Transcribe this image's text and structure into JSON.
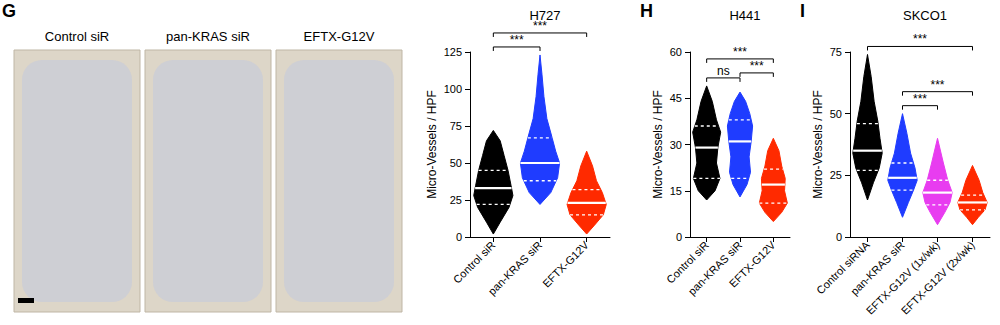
{
  "images": {
    "label": "G",
    "captions": [
      "Control siR",
      "pan-KRAS siR",
      "EFTX-G12V"
    ]
  },
  "chart_data": [
    {
      "type": "violin",
      "title": "H727",
      "y_label": "Micro-Vessels / HPF",
      "ylim": [
        0,
        125
      ],
      "yticks": [
        0,
        25,
        50,
        75,
        100,
        125
      ],
      "categories": [
        "Control siR",
        "pan-KRAS siR",
        "EFTX-G12V"
      ],
      "groups": [
        {
          "name": "Control siR",
          "color": "#000000",
          "q1": 22,
          "median": 33,
          "q3": 45,
          "density": [
            [
              2,
              0
            ],
            [
              10,
              0.35
            ],
            [
              20,
              0.8
            ],
            [
              28,
              1
            ],
            [
              35,
              0.9
            ],
            [
              45,
              0.75
            ],
            [
              55,
              0.55
            ],
            [
              65,
              0.35
            ],
            [
              72,
              0
            ]
          ]
        },
        {
          "name": "pan-KRAS siR",
          "color": "#1f3cff",
          "q1": 38,
          "median": 50,
          "q3": 67,
          "density": [
            [
              22,
              0
            ],
            [
              30,
              0.55
            ],
            [
              40,
              0.9
            ],
            [
              50,
              1
            ],
            [
              58,
              0.8
            ],
            [
              68,
              0.6
            ],
            [
              80,
              0.35
            ],
            [
              95,
              0.2
            ],
            [
              110,
              0.1
            ],
            [
              123,
              0
            ]
          ]
        },
        {
          "name": "EFTX-G12V",
          "color": "#ff2a00",
          "q1": 15,
          "median": 23,
          "q3": 32,
          "density": [
            [
              2,
              0
            ],
            [
              8,
              0.4
            ],
            [
              15,
              0.85
            ],
            [
              22,
              1
            ],
            [
              30,
              0.8
            ],
            [
              38,
              0.5
            ],
            [
              48,
              0.3
            ],
            [
              58,
              0
            ]
          ]
        }
      ],
      "comparisons": [
        {
          "from": 0,
          "to": 1,
          "label": "***"
        },
        {
          "from": 0,
          "to": 2,
          "label": "***"
        }
      ]
    },
    {
      "type": "violin",
      "title": "H441",
      "panel_label": "H",
      "y_label": "Micro-Vessels / HPF",
      "ylim": [
        0,
        60
      ],
      "yticks": [
        0,
        15,
        30,
        45,
        60
      ],
      "categories": [
        "Control siR",
        "pan-KRAS siR",
        "EFTX-G12V"
      ],
      "groups": [
        {
          "name": "Control siR",
          "color": "#000000",
          "q1": 19,
          "median": 29,
          "q3": 36,
          "density": [
            [
              12,
              0
            ],
            [
              15,
              0.6
            ],
            [
              19,
              0.95
            ],
            [
              24,
              0.7
            ],
            [
              29,
              0.8
            ],
            [
              34,
              1
            ],
            [
              38,
              0.7
            ],
            [
              44,
              0.4
            ],
            [
              49,
              0
            ]
          ]
        },
        {
          "name": "pan-KRAS siR",
          "color": "#1f3cff",
          "q1": 19,
          "median": 31,
          "q3": 38,
          "density": [
            [
              13,
              0
            ],
            [
              17,
              0.5
            ],
            [
              21,
              0.75
            ],
            [
              26,
              0.65
            ],
            [
              31,
              0.8
            ],
            [
              36,
              0.9
            ],
            [
              40,
              0.7
            ],
            [
              44,
              0.4
            ],
            [
              47,
              0
            ]
          ]
        },
        {
          "name": "EFTX-G12V",
          "color": "#ff2a00",
          "q1": 11,
          "median": 17,
          "q3": 22,
          "density": [
            [
              5,
              0
            ],
            [
              8,
              0.6
            ],
            [
              11,
              1
            ],
            [
              15,
              0.8
            ],
            [
              19,
              0.85
            ],
            [
              23,
              0.6
            ],
            [
              28,
              0.4
            ],
            [
              32,
              0
            ]
          ]
        }
      ],
      "comparisons": [
        {
          "from": 0,
          "to": 1,
          "label": "ns"
        },
        {
          "from": 1,
          "to": 2,
          "label": "***"
        },
        {
          "from": 0,
          "to": 2,
          "label": "***"
        }
      ]
    },
    {
      "type": "violin",
      "title": "SKCO1",
      "panel_label": "I",
      "y_label": "Micro-Vessels / HPF",
      "ylim": [
        0,
        75
      ],
      "yticks": [
        0,
        25,
        50,
        75
      ],
      "categories": [
        "Control siRNA",
        "pan-KRAS siR",
        "EFTX-G12V (1x/wk)",
        "EFTX-G12V (2x/wk)"
      ],
      "groups": [
        {
          "name": "Control siRNA",
          "color": "#000000",
          "q1": 27,
          "median": 35,
          "q3": 46,
          "density": [
            [
              15,
              0
            ],
            [
              22,
              0.4
            ],
            [
              28,
              0.8
            ],
            [
              34,
              1
            ],
            [
              40,
              0.85
            ],
            [
              47,
              0.7
            ],
            [
              55,
              0.45
            ],
            [
              65,
              0.25
            ],
            [
              74,
              0
            ]
          ]
        },
        {
          "name": "pan-KRAS siR",
          "color": "#1f3cff",
          "q1": 19,
          "median": 24,
          "q3": 30,
          "density": [
            [
              8,
              0
            ],
            [
              14,
              0.4
            ],
            [
              19,
              0.75
            ],
            [
              23,
              1
            ],
            [
              28,
              0.85
            ],
            [
              34,
              0.55
            ],
            [
              42,
              0.3
            ],
            [
              50,
              0
            ]
          ]
        },
        {
          "name": "EFTX-G12V (1x/wk)",
          "color": "#e83cf0",
          "q1": 13,
          "median": 18,
          "q3": 23,
          "density": [
            [
              5,
              0
            ],
            [
              10,
              0.5
            ],
            [
              14,
              0.85
            ],
            [
              18,
              1
            ],
            [
              23,
              0.7
            ],
            [
              30,
              0.4
            ],
            [
              40,
              0
            ]
          ]
        },
        {
          "name": "EFTX-G12V (2x/wk)",
          "color": "#ff2a00",
          "q1": 11,
          "median": 14,
          "q3": 17,
          "density": [
            [
              5,
              0
            ],
            [
              8,
              0.4
            ],
            [
              11,
              0.85
            ],
            [
              14,
              1
            ],
            [
              18,
              0.7
            ],
            [
              23,
              0.45
            ],
            [
              29,
              0
            ]
          ]
        }
      ],
      "comparisons": [
        {
          "from": 1,
          "to": 2,
          "label": "***"
        },
        {
          "from": 1,
          "to": 3,
          "label": "***"
        },
        {
          "from": 0,
          "to": 3,
          "label": "***"
        }
      ]
    }
  ]
}
